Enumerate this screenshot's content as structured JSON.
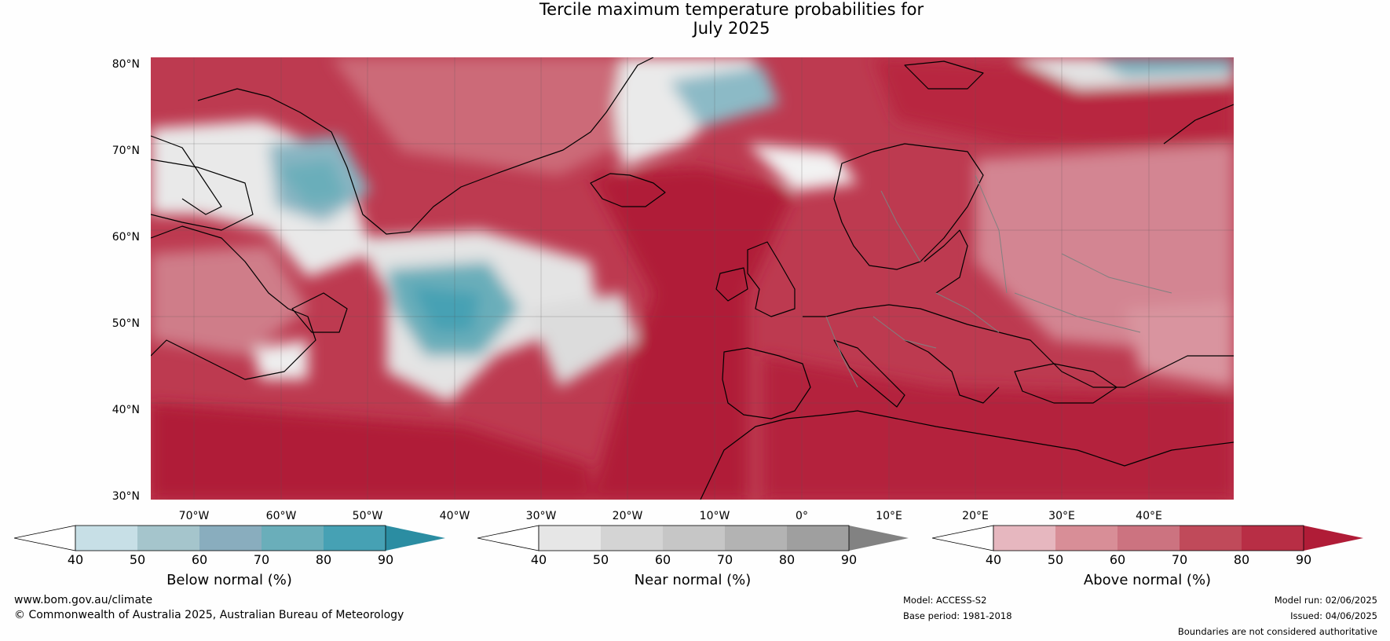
{
  "title_line1": "Tercile maximum temperature probabilities for",
  "title_line2": "July 2025",
  "latitudes": [
    "80°N",
    "70°N",
    "60°N",
    "50°N",
    "40°N",
    "30°N"
  ],
  "longitudes": [
    "70°W",
    "60°W",
    "50°W",
    "40°W",
    "30°W",
    "20°W",
    "10°W",
    "0°",
    "10°E",
    "20°E",
    "30°E",
    "40°E"
  ],
  "legends": [
    {
      "title": "Below normal (%)",
      "ticks": [
        "40",
        "50",
        "60",
        "70",
        "80",
        "90"
      ],
      "colors": [
        "#ffffff",
        "#c7dfe6",
        "#a5c5cc",
        "#89adbe",
        "#6aaeba",
        "#46a1b4",
        "#2b8da2"
      ]
    },
    {
      "title": "Near normal (%)",
      "ticks": [
        "40",
        "50",
        "60",
        "70",
        "80",
        "90"
      ],
      "colors": [
        "#ffffff",
        "#e6e6e6",
        "#d4d4d4",
        "#c6c6c6",
        "#b3b3b3",
        "#9f9f9f",
        "#828282"
      ]
    },
    {
      "title": "Above normal (%)",
      "ticks": [
        "40",
        "50",
        "60",
        "70",
        "80",
        "90"
      ],
      "colors": [
        "#ffffff",
        "#e6b7bf",
        "#d88e97",
        "#cc7380",
        "#c04a5a",
        "#b82e45",
        "#b01c37"
      ]
    }
  ],
  "footer": {
    "website": "www.bom.gov.au/climate",
    "copyright": "© Commonwealth of Australia 2025, Australian Bureau of Meteorology",
    "model": "Model: ACCESS-S2",
    "base_period": "Base period: 1981-2018",
    "model_run": "Model run: 02/06/2025",
    "issued": "Issued: 04/06/2025",
    "disclaimer": "Boundaries are not considered authoritative"
  },
  "colors": {
    "above_strong": "#b01c37",
    "above_mid": "#c04a5a",
    "above_light": "#d88e97",
    "near_light": "#e0e0e0",
    "below_mid": "#6aaeba",
    "coastline": "#000000",
    "border": "#808080"
  }
}
